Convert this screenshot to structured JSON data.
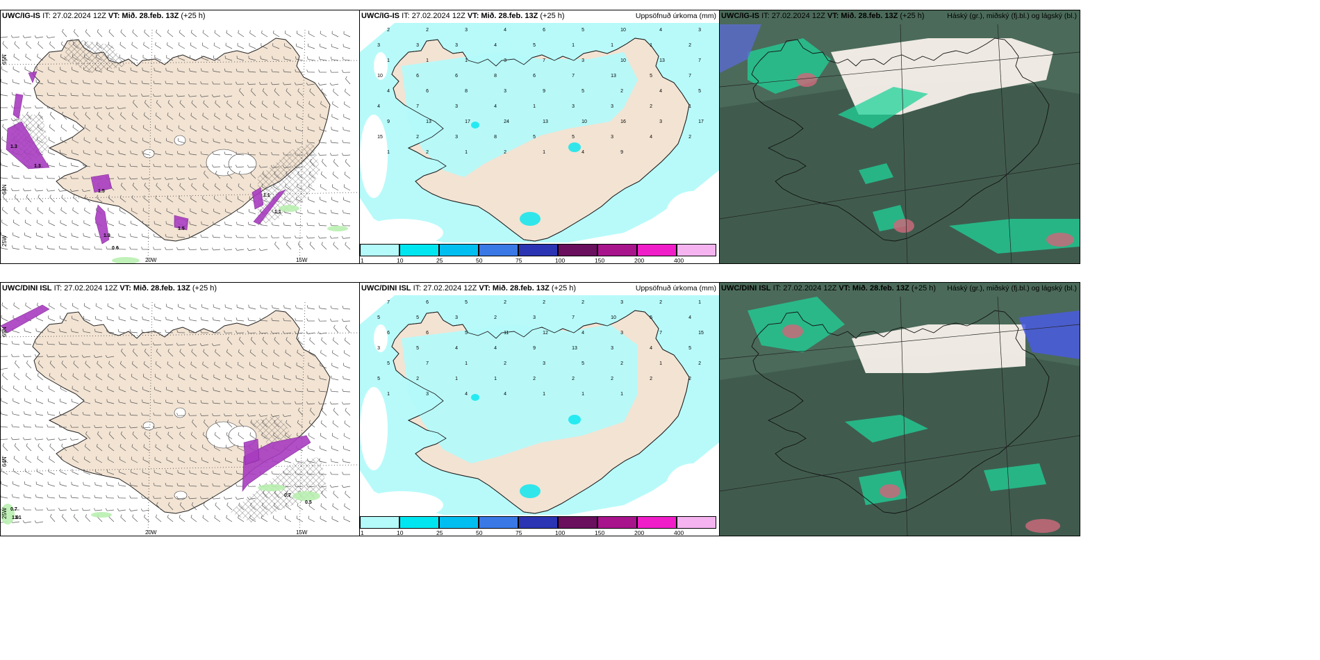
{
  "rows": [
    {
      "model": "UWC/IG-IS",
      "panels": [
        {
          "kind": "wind",
          "model": "UWC/IG-IS",
          "it": "IT: 27.02.2024 12Z",
          "vt": "VT: Mið. 28.feb. 13Z",
          "lead": "(+25 h)",
          "right": ""
        },
        {
          "kind": "precip",
          "model": "UWC/IG-IS",
          "it": "IT: 27.02.2024 12Z",
          "vt": "VT: Mið. 28.feb. 13Z",
          "lead": "(+25 h)",
          "right": "Uppsöfnuð úrkoma (mm)"
        },
        {
          "kind": "cloud",
          "model": "UWC/IG-IS",
          "it": "IT: 27.02.2024 12Z",
          "vt": "VT: Mið. 28.feb. 13Z",
          "lead": "(+25 h)",
          "right": "Háský (gr.), miðský (fj.bl.) og lágský (bl.)"
        }
      ]
    },
    {
      "model": "UWC/DINI ISL",
      "panels": [
        {
          "kind": "wind",
          "model": "UWC/DINI ISL",
          "it": "IT: 27.02.2024 12Z",
          "vt": "VT: Mið. 28.feb. 13Z",
          "lead": "(+25 h)",
          "right": ""
        },
        {
          "kind": "precip",
          "model": "UWC/DINI ISL",
          "it": "IT: 27.02.2024 12Z",
          "vt": "VT: Mið. 28.feb. 13Z",
          "lead": "(+25 h)",
          "right": "Uppsöfnuð úrkoma (mm)"
        },
        {
          "kind": "cloud",
          "model": "UWC/DINI ISL",
          "it": "IT: 27.02.2024 12Z",
          "vt": "VT: Mið. 28.feb. 13Z",
          "lead": "(+25 h)",
          "right": "Háský (gr.), miðský (fj.bl.) og lágský (bl.)"
        }
      ]
    }
  ],
  "wind_grid_labels": {
    "lon": [
      "20W",
      "15W"
    ],
    "lat": [
      "65N",
      "64N",
      "25W"
    ]
  },
  "wind_values": {
    "row0": [
      "1.3",
      "1.3",
      "1.5",
      "1.5",
      "1.9",
      "0.6",
      "1.1",
      "1.1"
    ],
    "row1": [
      "1.9",
      "1.1",
      "0.7",
      "0.7",
      "0.5"
    ]
  },
  "precip_legend": {
    "ticks": [
      "1",
      "10",
      "25",
      "50",
      "75",
      "100",
      "150",
      "200",
      "400"
    ],
    "colors": [
      "#b4fafa",
      "#00e6f0",
      "#00bff0",
      "#3a78e6",
      "#2b35b3",
      "#6a0f5e",
      "#a8148c",
      "#f01ec8",
      "#f5b4f0"
    ]
  },
  "precip_numbers": {
    "row0": [
      "2",
      "2",
      "3",
      "4",
      "6",
      "5",
      "10",
      "4",
      "3",
      "3",
      "3",
      "3",
      "4",
      "5",
      "1",
      "1",
      "1",
      "2",
      "1",
      "1",
      "1",
      "3",
      "7",
      "3",
      "10",
      "13",
      "7",
      "10",
      "6",
      "6",
      "8",
      "6",
      "7",
      "13",
      "5",
      "7",
      "4",
      "6",
      "8",
      "3",
      "9",
      "5",
      "2",
      "4",
      "5",
      "4",
      "7",
      "3",
      "4",
      "1",
      "3",
      "3",
      "2",
      "1",
      "9",
      "13",
      "17",
      "24",
      "13",
      "10",
      "16",
      "3",
      "17",
      "15",
      "2",
      "3",
      "8",
      "5",
      "5",
      "3",
      "4",
      "2",
      "1",
      "2",
      "1",
      "2",
      "1",
      "4",
      "9"
    ],
    "row1": [
      "7",
      "6",
      "5",
      "2",
      "2",
      "2",
      "3",
      "2",
      "1",
      "5",
      "5",
      "3",
      "2",
      "3",
      "7",
      "10",
      "5",
      "4",
      "6",
      "6",
      "5",
      "11",
      "12",
      "4",
      "3",
      "7",
      "15",
      "3",
      "5",
      "4",
      "4",
      "9",
      "13",
      "3",
      "4",
      "5",
      "5",
      "7",
      "1",
      "2",
      "3",
      "5",
      "2",
      "1",
      "2",
      "5",
      "2",
      "1",
      "1",
      "2",
      "2",
      "2",
      "2",
      "2",
      "1",
      "3",
      "4",
      "4",
      "1",
      "1",
      "1"
    ]
  },
  "colors": {
    "land": "#f2e3d3",
    "sea": "#ffffff",
    "precip_light": "#b4fafa",
    "magenta": "#a83cc0",
    "cloud_dark": "#3f5a4d",
    "cloud_teal": "#1fd39a",
    "cloud_white": "#f7f0ea"
  }
}
